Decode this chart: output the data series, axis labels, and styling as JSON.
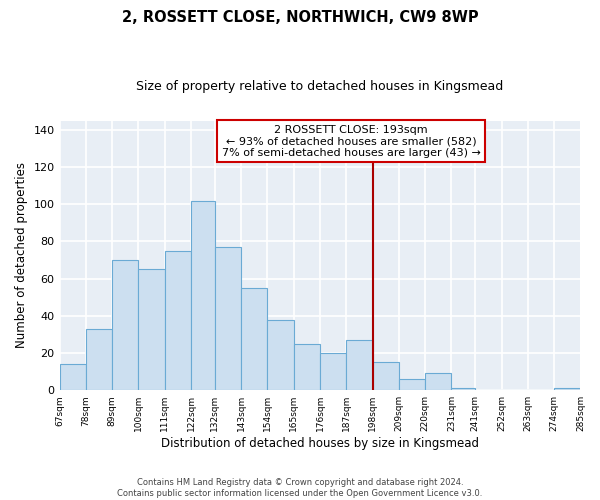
{
  "title": "2, ROSSETT CLOSE, NORTHWICH, CW9 8WP",
  "subtitle": "Size of property relative to detached houses in Kingsmead",
  "xlabel": "Distribution of detached houses by size in Kingsmead",
  "ylabel": "Number of detached properties",
  "bins": [
    67,
    78,
    89,
    100,
    111,
    122,
    132,
    143,
    154,
    165,
    176,
    187,
    198,
    209,
    220,
    231,
    241,
    252,
    263,
    274,
    285
  ],
  "counts": [
    14,
    33,
    70,
    65,
    75,
    102,
    77,
    55,
    38,
    25,
    20,
    27,
    15,
    6,
    9,
    1,
    0,
    0,
    0,
    1
  ],
  "bar_color": "#ccdff0",
  "bar_edge_color": "#6aaad4",
  "property_line_x": 198,
  "property_line_color": "#aa0000",
  "ylim": [
    0,
    145
  ],
  "yticks": [
    0,
    20,
    40,
    60,
    80,
    100,
    120,
    140
  ],
  "annotation_title": "2 ROSSETT CLOSE: 193sqm",
  "annotation_line1": "← 93% of detached houses are smaller (582)",
  "annotation_line2": "7% of semi-detached houses are larger (43) →",
  "footer_line1": "Contains HM Land Registry data © Crown copyright and database right 2024.",
  "footer_line2": "Contains public sector information licensed under the Open Government Licence v3.0.",
  "tick_labels": [
    "67sqm",
    "78sqm",
    "89sqm",
    "100sqm",
    "111sqm",
    "122sqm",
    "132sqm",
    "143sqm",
    "154sqm",
    "165sqm",
    "176sqm",
    "187sqm",
    "198sqm",
    "209sqm",
    "220sqm",
    "231sqm",
    "241sqm",
    "252sqm",
    "263sqm",
    "274sqm",
    "285sqm"
  ],
  "background_color": "#e8eef5"
}
